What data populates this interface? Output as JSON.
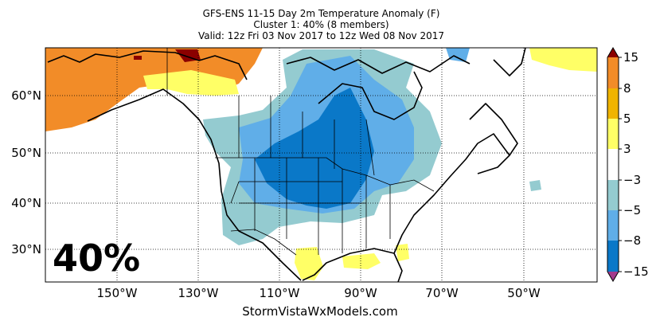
{
  "title": {
    "line1": "GFS-ENS 11-15 Day 2m Temperature Anomaly (F)",
    "line2": "Cluster 1: 40% (8 members)",
    "line3": "Valid: 12z Fri 03 Nov 2017 to 12z Wed 08 Nov 2017"
  },
  "overlay_text": "40%",
  "credit": "StormVistaWxModels.com",
  "lat_labels": [
    "60°N",
    "50°N",
    "40°N",
    "30°N"
  ],
  "lon_labels": [
    "150°W",
    "130°W",
    "110°W",
    "90°W",
    "70°W",
    "50°W"
  ],
  "colorbar": {
    "labels": [
      "15",
      "8",
      "5",
      "3",
      "−3",
      "−5",
      "−8",
      "−15"
    ],
    "colors": {
      "warm_extreme": "#8b0000",
      "warm_8_15": "#f28c28",
      "warm_5_8": "#f0b400",
      "warm_3_5": "#ffff66",
      "neutral": "#ffffff",
      "cool_3_5": "#94cbd0",
      "cool_5_8": "#60aee8",
      "cool_8_15": "#0a78c8",
      "cool_extreme": "#a23a8c"
    }
  },
  "map_colors": {
    "coast": "#000000",
    "border": "#000000",
    "grid": "#000000"
  }
}
